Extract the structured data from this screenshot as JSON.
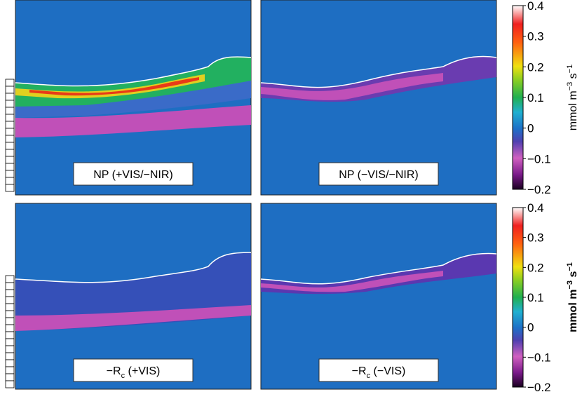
{
  "chart_data": [
    {
      "type": "heatmap",
      "panels": [
        {
          "label": [
            "NP (+VIS/−NIR)"
          ]
        },
        {
          "label": [
            "NP (−VIS/−NIR)"
          ]
        }
      ],
      "colorbar": {
        "label": [
          "mmol m",
          "−3",
          " s",
          "−1"
        ],
        "ylim": [
          -0.2,
          0.4
        ],
        "yticks": [
          {
            "value": -0.2,
            "label": "−0.2"
          },
          {
            "value": -0.1,
            "label": "−0.1"
          },
          0,
          0.1,
          0.2,
          0.3,
          0.4
        ]
      }
    },
    {
      "type": "heatmap",
      "panels": [
        {
          "label": [
            "−R",
            "c",
            " (+VIS)"
          ]
        },
        {
          "label": [
            "−R",
            "c",
            " (−VIS)"
          ]
        }
      ],
      "colorbar": {
        "label": [
          "mmol m",
          "−3",
          " s",
          "−1"
        ],
        "ylim": [
          -0.2,
          0.4
        ],
        "yticks": [
          {
            "value": -0.2,
            "label": "−0.2"
          },
          {
            "value": -0.1,
            "label": "−0.1"
          },
          0,
          0.1,
          0.2,
          0.3,
          0.4
        ]
      }
    }
  ]
}
